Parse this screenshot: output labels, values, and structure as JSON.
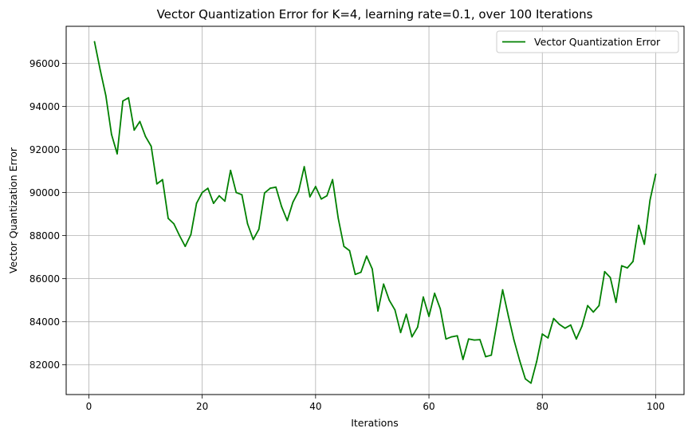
{
  "chart_data": {
    "type": "line",
    "title": "Vector Quantization Error for K=4, learning rate=0.1, over 100 Iterations",
    "xlabel": "Iterations",
    "ylabel": "Vector Quantization Error",
    "xlim": [
      -4,
      105
    ],
    "ylim": [
      80620,
      97720
    ],
    "x_ticks": [
      0,
      20,
      40,
      60,
      80,
      100
    ],
    "y_ticks": [
      82000,
      84000,
      86000,
      88000,
      90000,
      92000,
      94000,
      96000
    ],
    "grid": true,
    "legend_position": "upper right",
    "series": [
      {
        "name": "Vector Quantization Error",
        "color": "#008000",
        "x": [
          1,
          2,
          3,
          4,
          5,
          6,
          7,
          8,
          9,
          10,
          11,
          12,
          13,
          14,
          15,
          16,
          17,
          18,
          19,
          20,
          21,
          22,
          23,
          24,
          25,
          26,
          27,
          28,
          29,
          30,
          31,
          32,
          33,
          34,
          35,
          36,
          37,
          38,
          39,
          40,
          41,
          42,
          43,
          44,
          45,
          46,
          47,
          48,
          49,
          50,
          51,
          52,
          53,
          54,
          55,
          56,
          57,
          58,
          59,
          60,
          61,
          62,
          63,
          64,
          65,
          66,
          67,
          68,
          69,
          70,
          71,
          72,
          73,
          74,
          75,
          76,
          77,
          78,
          79,
          80,
          81,
          82,
          83,
          84,
          85,
          86,
          87,
          88,
          89,
          90,
          91,
          92,
          93,
          94,
          95,
          96,
          97,
          98,
          99,
          100
        ],
        "values": [
          97000,
          95700,
          94500,
          92700,
          91800,
          94250,
          94400,
          92900,
          93300,
          92600,
          92150,
          90400,
          90600,
          88800,
          88550,
          88000,
          87500,
          88050,
          89500,
          90000,
          90200,
          89500,
          89850,
          89600,
          91030,
          90000,
          89900,
          88550,
          87820,
          88300,
          89980,
          90200,
          90250,
          89350,
          88700,
          89550,
          90050,
          91200,
          89800,
          90280,
          89700,
          89850,
          90600,
          88800,
          87500,
          87300,
          86200,
          86300,
          87050,
          86450,
          84500,
          85750,
          85000,
          84550,
          83500,
          84350,
          83300,
          83750,
          85150,
          84250,
          85320,
          84600,
          83200,
          83300,
          83350,
          82250,
          83200,
          83150,
          83170,
          82380,
          82450,
          83950,
          85480,
          84280,
          83150,
          82200,
          81350,
          81150,
          82150,
          83430,
          83250,
          84150,
          83880,
          83700,
          83850,
          83200,
          83800,
          84750,
          84450,
          84750,
          86330,
          86050,
          84900,
          86600,
          86500,
          86800,
          88480,
          87600,
          89650,
          90850
        ]
      }
    ]
  }
}
